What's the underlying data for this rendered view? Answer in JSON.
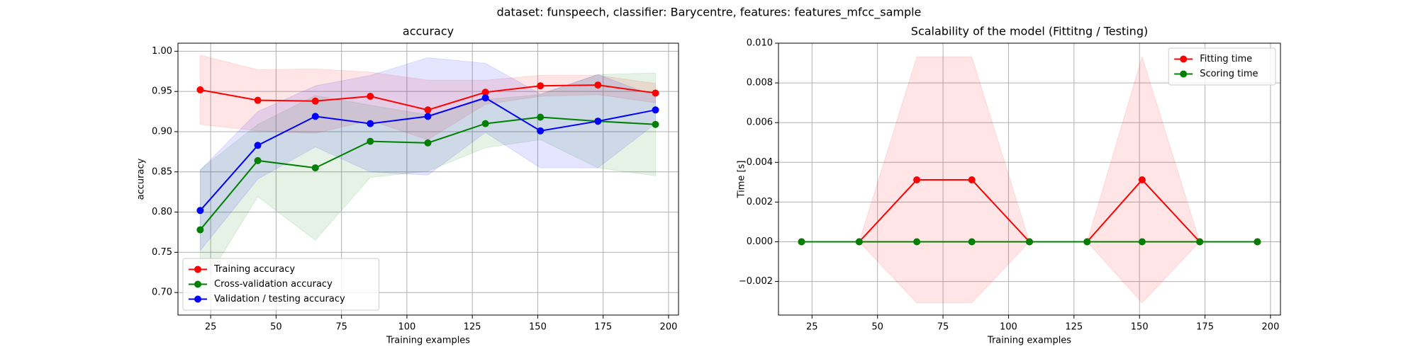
{
  "title": "dataset: funspeech, classifier: Barycentre, features: features_mfcc_sample",
  "chart_data": [
    {
      "type": "line",
      "title": "accuracy",
      "xlabel": "Training examples",
      "ylabel": "accuracy",
      "x": [
        21,
        43,
        65,
        86,
        108,
        130,
        151,
        173,
        195
      ],
      "xlim": [
        12.5,
        203.8
      ],
      "xticks": [
        25,
        50,
        75,
        100,
        125,
        150,
        175,
        200
      ],
      "ylim": [
        0.672,
        1.01
      ],
      "yticks": [
        {
          "value": 0.7,
          "label": "0.70"
        },
        {
          "value": 0.75,
          "label": "0.75"
        },
        {
          "value": 0.8,
          "label": "0.80"
        },
        {
          "value": 0.85,
          "label": "0.85"
        },
        {
          "value": 0.9,
          "label": "0.90"
        },
        {
          "value": 0.95,
          "label": "0.95"
        },
        {
          "value": 1.0,
          "label": "1.00"
        }
      ],
      "grid": true,
      "legend": "lower left",
      "series": [
        {
          "name": "Training accuracy",
          "color": "#ff0000",
          "values": [
            0.952,
            0.939,
            0.938,
            0.944,
            0.927,
            0.949,
            0.957,
            0.958,
            0.948
          ],
          "std": [
            0.043,
            0.038,
            0.04,
            0.03,
            0.037,
            0.015,
            0.013,
            0.012,
            0.012
          ]
        },
        {
          "name": "Cross-validation accuracy",
          "color": "#008000",
          "values": [
            0.778,
            0.864,
            0.855,
            0.888,
            0.886,
            0.91,
            0.918,
            0.913,
            0.909
          ],
          "std": [
            0.075,
            0.045,
            0.09,
            0.045,
            0.035,
            0.03,
            0.028,
            0.058,
            0.064
          ]
        },
        {
          "name": "Validation / testing accuracy",
          "color": "#0000ff",
          "values": [
            0.802,
            0.883,
            0.919,
            0.91,
            0.919,
            0.942,
            0.901,
            0.913,
            0.927
          ],
          "std": [
            0.05,
            0.042,
            0.038,
            0.06,
            0.073,
            0.043,
            0.046,
            0.058,
            0.017
          ]
        }
      ]
    },
    {
      "type": "line",
      "title": "Scalability of the model (Fittitng / Testing)",
      "xlabel": "Training examples",
      "ylabel": "Time [s]",
      "x": [
        21,
        43,
        65,
        86,
        108,
        130,
        151,
        173,
        195
      ],
      "xlim": [
        12.2,
        203.8
      ],
      "xticks": [
        25,
        50,
        75,
        100,
        125,
        150,
        175,
        200
      ],
      "ylim": [
        -0.00369,
        0.01
      ],
      "yticks": [
        {
          "value": -0.002,
          "label": "−0.002"
        },
        {
          "value": 0,
          "label": "0.000"
        },
        {
          "value": 0.002,
          "label": "0.002"
        },
        {
          "value": 0.004,
          "label": "0.004"
        },
        {
          "value": 0.006,
          "label": "0.006"
        },
        {
          "value": 0.008,
          "label": "0.008"
        },
        {
          "value": 0.01,
          "label": "0.010"
        }
      ],
      "grid": true,
      "legend": "upper right",
      "series": [
        {
          "name": "Fitting time",
          "color": "#ff0000",
          "values": [
            0,
            0,
            0.00312,
            0.00312,
            0,
            0,
            0.00312,
            0,
            0
          ],
          "std": [
            0,
            0,
            0.0062,
            0.0062,
            0,
            0,
            0.0062,
            0,
            0
          ]
        },
        {
          "name": "Scoring time",
          "color": "#008000",
          "values": [
            0,
            0,
            0,
            0,
            0,
            0,
            0,
            0,
            0
          ],
          "std": [
            0,
            0,
            0,
            0,
            0,
            0,
            0,
            0,
            0
          ]
        }
      ]
    }
  ]
}
